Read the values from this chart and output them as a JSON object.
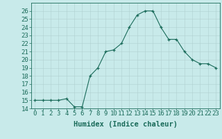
{
  "xlabel": "Humidex (Indice chaleur)",
  "ylabel": "",
  "x_values": [
    0,
    1,
    2,
    3,
    4,
    5,
    6,
    7,
    8,
    9,
    10,
    11,
    12,
    13,
    14,
    15,
    16,
    17,
    18,
    19,
    20,
    21,
    22,
    23
  ],
  "y_values": [
    15,
    15,
    15,
    15,
    15.2,
    14.2,
    14.2,
    18,
    19,
    21,
    21.2,
    22,
    24,
    25.5,
    26,
    26,
    24,
    22.5,
    22.5,
    21,
    20,
    19.5,
    19.5,
    19
  ],
  "line_color": "#1a6b5a",
  "marker_color": "#1a6b5a",
  "bg_color": "#c8eaea",
  "grid_color": "#b0d0d0",
  "ylim": [
    14,
    27
  ],
  "xlim": [
    -0.5,
    23.5
  ],
  "yticks": [
    14,
    15,
    16,
    17,
    18,
    19,
    20,
    21,
    22,
    23,
    24,
    25,
    26
  ],
  "xticks": [
    0,
    1,
    2,
    3,
    4,
    5,
    6,
    7,
    8,
    9,
    10,
    11,
    12,
    13,
    14,
    15,
    16,
    17,
    18,
    19,
    20,
    21,
    22,
    23
  ],
  "xtick_labels": [
    "0",
    "1",
    "2",
    "3",
    "4",
    "5",
    "6",
    "7",
    "8",
    "9",
    "10",
    "11",
    "12",
    "13",
    "14",
    "15",
    "16",
    "17",
    "18",
    "19",
    "20",
    "21",
    "22",
    "23"
  ],
  "ytick_labels": [
    "14",
    "15",
    "16",
    "17",
    "18",
    "19",
    "20",
    "21",
    "22",
    "23",
    "24",
    "25",
    "26"
  ],
  "tick_fontsize": 6.5,
  "xlabel_fontsize": 7.5
}
